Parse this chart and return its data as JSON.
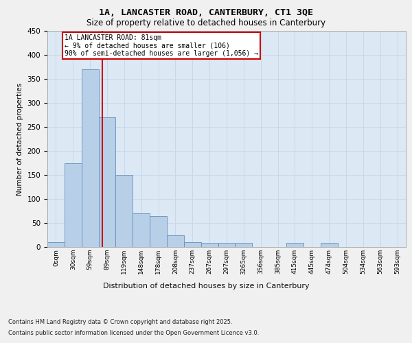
{
  "title_line1": "1A, LANCASTER ROAD, CANTERBURY, CT1 3QE",
  "title_line2": "Size of property relative to detached houses in Canterbury",
  "xlabel": "Distribution of detached houses by size in Canterbury",
  "ylabel": "Number of detached properties",
  "categories": [
    "0sqm",
    "30sqm",
    "59sqm",
    "89sqm",
    "119sqm",
    "148sqm",
    "178sqm",
    "208sqm",
    "237sqm",
    "267sqm",
    "297sqm",
    "3265qm",
    "356sqm",
    "385sqm",
    "415sqm",
    "445sqm",
    "474sqm",
    "504sqm",
    "534sqm",
    "563sqm",
    "593sqm"
  ],
  "bar_values": [
    10,
    175,
    370,
    270,
    150,
    70,
    65,
    25,
    10,
    8,
    8,
    8,
    0,
    0,
    8,
    0,
    8,
    0,
    0,
    0,
    0
  ],
  "bar_color": "#b8cfe8",
  "bar_edge_color": "#6090c0",
  "grid_color": "#c8d8ea",
  "background_color": "#dce8f4",
  "fig_background": "#f0f0f0",
  "annotation_text": "1A LANCASTER ROAD: 81sqm\n← 9% of detached houses are smaller (106)\n90% of semi-detached houses are larger (1,056) →",
  "annotation_box_color": "#ffffff",
  "annotation_border_color": "#cc0000",
  "vline_bin": 2.7,
  "vline_color": "#cc0000",
  "ylim": [
    0,
    450
  ],
  "yticks": [
    0,
    50,
    100,
    150,
    200,
    250,
    300,
    350,
    400,
    450
  ],
  "footer_line1": "Contains HM Land Registry data © Crown copyright and database right 2025.",
  "footer_line2": "Contains public sector information licensed under the Open Government Licence v3.0."
}
